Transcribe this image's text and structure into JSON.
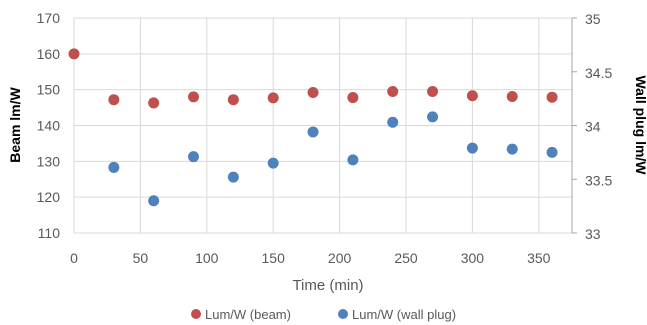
{
  "chart_data": {
    "type": "scatter",
    "xlabel": "Time (min)",
    "ylabel_left": "Beam  lm/W",
    "ylabel_right": "Wall plug lm/W",
    "xlim": [
      0,
      375
    ],
    "ylim_left": [
      110,
      170
    ],
    "ylim_right": [
      33,
      35
    ],
    "x_ticks": [
      "0",
      "50",
      "100",
      "150",
      "200",
      "250",
      "300",
      "350"
    ],
    "y_ticks_left": [
      "110",
      "120",
      "130",
      "140",
      "150",
      "160",
      "170"
    ],
    "y_ticks_right": [
      "33",
      "33.5",
      "34",
      "34.5",
      "35"
    ],
    "grid": true,
    "legend_position": "bottom",
    "series": [
      {
        "name": "Lum/W (beam)",
        "axis": "left",
        "color": "#c0504d",
        "points": [
          [
            0,
            160.0
          ],
          [
            30,
            147.2
          ],
          [
            60,
            146.3
          ],
          [
            90,
            148.0
          ],
          [
            120,
            147.2
          ],
          [
            150,
            147.7
          ],
          [
            180,
            149.2
          ],
          [
            210,
            147.8
          ],
          [
            240,
            149.5
          ],
          [
            270,
            149.5
          ],
          [
            300,
            148.3
          ],
          [
            330,
            148.1
          ],
          [
            360,
            147.9
          ]
        ]
      },
      {
        "name": "Lum/W (wall plug)",
        "axis": "right",
        "color": "#4f81bd",
        "points": [
          [
            30,
            33.61
          ],
          [
            60,
            33.3
          ],
          [
            90,
            33.71
          ],
          [
            120,
            33.52
          ],
          [
            150,
            33.65
          ],
          [
            180,
            33.94
          ],
          [
            210,
            33.68
          ],
          [
            240,
            34.03
          ],
          [
            270,
            34.08
          ],
          [
            300,
            33.79
          ],
          [
            330,
            33.78
          ],
          [
            360,
            33.75
          ]
        ]
      }
    ]
  }
}
